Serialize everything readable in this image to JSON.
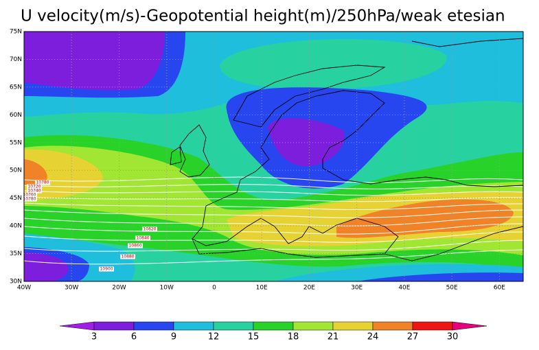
{
  "title": "U velocity(m/s)-Geopotential height(m)/250hPa/weak etesian",
  "map": {
    "lonlim": [
      -40,
      65
    ],
    "latlim": [
      30,
      75
    ],
    "lonticks": [
      {
        "value": -40,
        "label": "40W"
      },
      {
        "value": -30,
        "label": "30W"
      },
      {
        "value": -20,
        "label": "20W"
      },
      {
        "value": -10,
        "label": "10W"
      },
      0,
      {
        "value": 10,
        "label": "10E"
      },
      {
        "value": 20,
        "label": "20E"
      },
      {
        "value": 30,
        "label": "30E"
      },
      {
        "value": 40,
        "label": "40E"
      },
      {
        "value": 50,
        "label": "50E"
      },
      {
        "value": 60,
        "label": "60E"
      }
    ],
    "latticks": [
      {
        "value": 30,
        "label": "30N"
      },
      {
        "value": 35,
        "label": "35N"
      },
      {
        "value": 40,
        "label": "40N"
      },
      {
        "value": 45,
        "label": "45N"
      },
      {
        "value": 50,
        "label": "50N"
      },
      {
        "value": 55,
        "label": "55N"
      },
      {
        "value": 60,
        "label": "60N"
      },
      {
        "value": 65,
        "label": "65N"
      },
      {
        "value": 70,
        "label": "70N"
      },
      {
        "value": 75,
        "label": "75N"
      }
    ],
    "grid": true,
    "contour_labels": [
      10780,
      10720,
      10740,
      10760,
      10780,
      10820,
      10840,
      10860,
      10880,
      10900
    ]
  },
  "colorbar": {
    "levels": [
      3,
      6,
      9,
      12,
      15,
      18,
      21,
      24,
      27,
      30
    ],
    "colors": [
      "#a01ee6",
      "#7d1edc",
      "#2846f0",
      "#1ebedc",
      "#28d2a0",
      "#28d228",
      "#a0e632",
      "#e6d232",
      "#f08228",
      "#f01414",
      "#e6007d"
    ]
  }
}
